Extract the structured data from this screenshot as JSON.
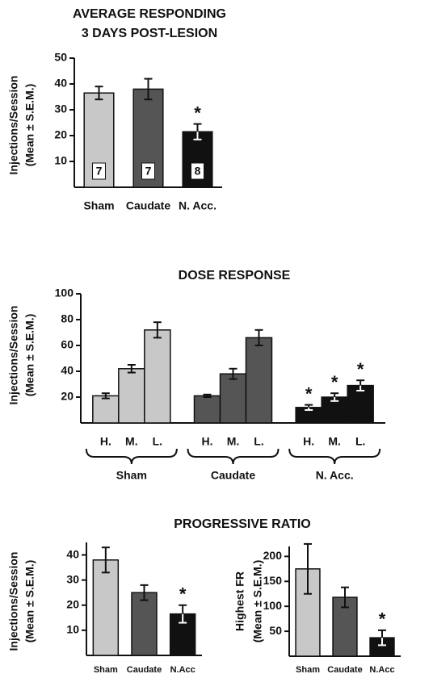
{
  "chart_data": [
    {
      "type": "bar",
      "title": [
        "AVERAGE RESPONDING",
        "3 DAYS POST-LESION"
      ],
      "ylabel": [
        "Injections/Session",
        "(Mean ± S.E.M.)"
      ],
      "categories": [
        "Sham",
        "Caudate",
        "N. Acc."
      ],
      "values": [
        36.5,
        38,
        21.5
      ],
      "errors": [
        2.5,
        4,
        3
      ],
      "colors": [
        "#c8c8c8",
        "#555555",
        "#111111"
      ],
      "n": [
        7,
        7,
        8
      ],
      "annotations": [
        null,
        null,
        "*"
      ],
      "ylim": [
        0,
        50
      ],
      "yticks": [
        10,
        20,
        30,
        40,
        50
      ]
    },
    {
      "type": "grouped_bar",
      "title": "DOSE RESPONSE",
      "ylabel": [
        "Injections/Session",
        "(Mean ± S.E.M.)"
      ],
      "categories": [
        "H.",
        "M.",
        "L."
      ],
      "series": [
        {
          "name": "Sham",
          "color": "#c8c8c8",
          "values": [
            21,
            42,
            72
          ],
          "errors": [
            2,
            3,
            6
          ]
        },
        {
          "name": "Caudate",
          "color": "#555555",
          "values": [
            21,
            38,
            66
          ],
          "errors": [
            1,
            4,
            6
          ]
        },
        {
          "name": "N. Acc.",
          "color": "#111111",
          "values": [
            12,
            20,
            29
          ],
          "errors": [
            2,
            3,
            4
          ],
          "annotations": [
            "*",
            "*",
            "*"
          ]
        }
      ],
      "ylim": [
        0,
        100
      ],
      "yticks": [
        20,
        40,
        60,
        80,
        100
      ]
    },
    {
      "type": "bar",
      "title": "PROGRESSIVE RATIO",
      "ylabel": [
        "Injections/Session",
        "(Mean ± S.E.M.)"
      ],
      "categories": [
        "Sham",
        "Caudate",
        "N.Acc"
      ],
      "values": [
        38,
        25,
        16.5
      ],
      "errors": [
        5,
        3,
        3.5
      ],
      "colors": [
        "#c8c8c8",
        "#555555",
        "#111111"
      ],
      "annotations": [
        null,
        null,
        "*"
      ],
      "ylim": [
        0,
        45
      ],
      "yticks": [
        10,
        20,
        30,
        40
      ]
    },
    {
      "type": "bar",
      "ylabel": [
        "Highest FR",
        "(Mean ± S.E.M.)"
      ],
      "categories": [
        "Sham",
        "Caudate",
        "N.Acc"
      ],
      "values": [
        175,
        118,
        37
      ],
      "errors": [
        50,
        20,
        15
      ],
      "colors": [
        "#c8c8c8",
        "#555555",
        "#111111"
      ],
      "annotations": [
        null,
        null,
        "*"
      ],
      "ylim": [
        0,
        220
      ],
      "yticks": [
        50,
        100,
        150,
        200
      ]
    }
  ]
}
